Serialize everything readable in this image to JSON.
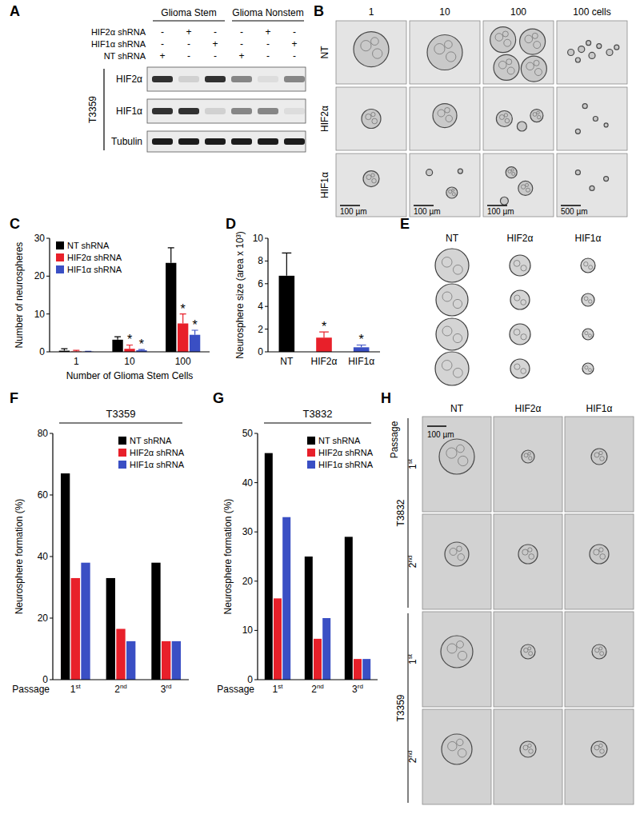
{
  "chart_data": [
    {
      "type": "bar",
      "y_label": "Number of neurospheres",
      "x_label": "Number of Glioma Stem Cells",
      "categories": [
        "1",
        "10",
        "100"
      ],
      "series": [
        {
          "name": "NT shRNA",
          "color": "#000000",
          "values": [
            0.3,
            3.2,
            23.5
          ],
          "errors": [
            0.5,
            0.8,
            4.0
          ],
          "significance": [
            null,
            null,
            null
          ]
        },
        {
          "name": "HIF2α shRNA",
          "color": "#e8202a",
          "values": [
            0.1,
            0.8,
            7.5
          ],
          "errors": [
            0.3,
            1.0,
            2.5
          ],
          "significance": [
            null,
            "*",
            "*"
          ]
        },
        {
          "name": "HIF1α shRNA",
          "color": "#3a4fc4",
          "values": [
            0.05,
            0.4,
            4.5
          ],
          "errors": [
            0.1,
            0.2,
            1.2
          ],
          "significance": [
            null,
            "*",
            "*"
          ]
        }
      ],
      "ylim": [
        0,
        30
      ],
      "yticks": [
        0,
        10,
        20,
        30
      ],
      "legend": "top-left"
    },
    {
      "type": "bar",
      "y_label": "Neurosphere size  (area x 10³)",
      "categories": [
        "NT",
        "HIF2α",
        "HIF1α"
      ],
      "values": [
        6.7,
        1.25,
        0.4
      ],
      "errors": [
        2.0,
        0.5,
        0.2
      ],
      "significance": [
        null,
        "*",
        "*"
      ],
      "colors": [
        "#000000",
        "#e8202a",
        "#3a4fc4"
      ],
      "ylim": [
        0,
        10
      ],
      "yticks": [
        0,
        2,
        4,
        6,
        8,
        10
      ]
    },
    {
      "type": "bar",
      "title": "T3359",
      "y_label": "Neurosphere formation (%)",
      "x_label": "Passage",
      "categories": [
        "1st",
        "2nd",
        "3rd"
      ],
      "series": [
        {
          "name": "NT shRNA",
          "color": "#000000",
          "values": [
            67,
            33,
            38
          ]
        },
        {
          "name": "HIF2α shRNA",
          "color": "#e8202a",
          "values": [
            33,
            16.5,
            12.5
          ]
        },
        {
          "name": "HIF1α shRNA",
          "color": "#3a4fc4",
          "values": [
            38,
            12.5,
            12.5
          ]
        }
      ],
      "ylim": [
        0,
        80
      ],
      "yticks": [
        0,
        20,
        40,
        60,
        80
      ],
      "legend": "top-right"
    },
    {
      "type": "bar",
      "title": "T3832",
      "y_label": "Neurosphere formation (%)",
      "x_label": "Passage",
      "categories": [
        "1st",
        "2nd",
        "3rd"
      ],
      "series": [
        {
          "name": "NT shRNA",
          "color": "#000000",
          "values": [
            46,
            25,
            29
          ]
        },
        {
          "name": "HIF2α shRNA",
          "color": "#e8202a",
          "values": [
            16.5,
            8.3,
            4.2
          ]
        },
        {
          "name": "HIF1α shRNA",
          "color": "#3a4fc4",
          "values": [
            33,
            12.5,
            4.2
          ]
        }
      ],
      "ylim": [
        0,
        50
      ],
      "yticks": [
        0,
        10,
        20,
        30,
        40,
        50
      ],
      "legend": "top-right"
    }
  ],
  "panel_letters": [
    "A",
    "B",
    "C",
    "D",
    "E",
    "F",
    "G",
    "H"
  ],
  "blot": {
    "cell_groups": [
      "Glioma Stem",
      "Glioma Nonstem"
    ],
    "conditions": [
      {
        "label": "HIF2α shRNA",
        "lanes": [
          "-",
          "+",
          "-",
          "-",
          "+",
          "-"
        ]
      },
      {
        "label": "HIF1α shRNA",
        "lanes": [
          "-",
          "-",
          "+",
          "-",
          "-",
          "+"
        ]
      },
      {
        "label": "NT shRNA",
        "lanes": [
          "+",
          "-",
          "-",
          "+",
          "-",
          "-"
        ]
      }
    ],
    "blots": [
      "HIF2α",
      "HIF1α",
      "Tubulin"
    ],
    "cell_line": "T3359"
  },
  "micrographs_b": {
    "columns": [
      "1",
      "10",
      "100",
      "100 cells"
    ],
    "rows": [
      "NT",
      "HIF2α",
      "HIF1α"
    ],
    "scale_bars": [
      "100 µm",
      "100 µm",
      "100 µm",
      "500 µm"
    ]
  },
  "micrographs_e": {
    "columns": [
      "NT",
      "HIF2α",
      "HIF1α"
    ]
  },
  "micrographs_h": {
    "header": "Passage",
    "columns": [
      "NT",
      "HIF2α",
      "HIF1α"
    ],
    "groups": [
      {
        "label": "T3832",
        "rows": [
          "1st",
          "2nd"
        ]
      },
      {
        "label": "T3359",
        "rows": [
          "1st",
          "2nd"
        ]
      }
    ],
    "scale_bar": "100 µm"
  }
}
